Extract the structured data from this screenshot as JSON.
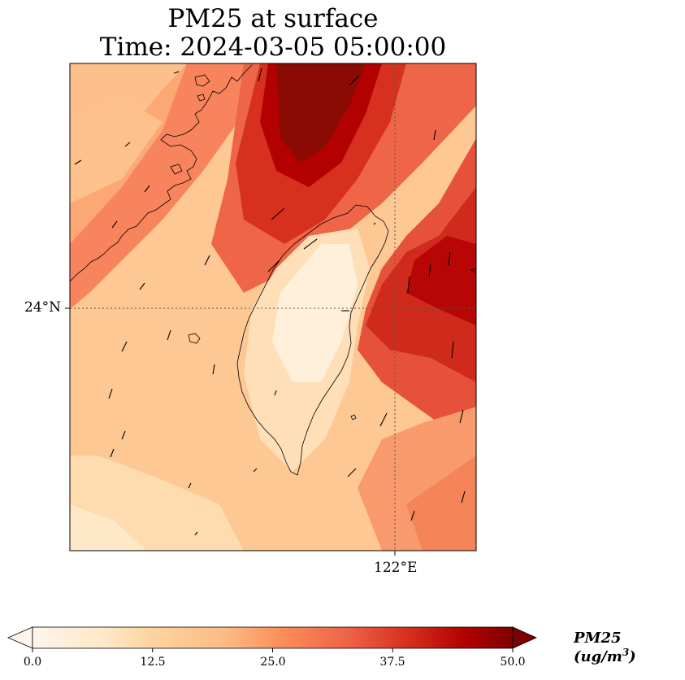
{
  "title": {
    "line1": "PM25 at surface",
    "line2": "Time: 2024-03-05 05:00:00"
  },
  "axes": {
    "lat_label": "24°N",
    "lon_label": "122°E"
  },
  "colorbar": {
    "label": "PM25 (ug/m",
    "label_exp": "3",
    "label_close": ")",
    "ticks": [
      "0.0",
      "12.5",
      "25.0",
      "37.5",
      "50.0"
    ],
    "min": 0,
    "max": 50,
    "colormap": [
      "#fff5eb",
      "#fdd49e",
      "#fdbb84",
      "#fc8d59",
      "#ef6548",
      "#d7301f",
      "#b30000",
      "#7f0000"
    ]
  },
  "colors": {
    "coast": "#000000",
    "gridline": "#555555"
  }
}
